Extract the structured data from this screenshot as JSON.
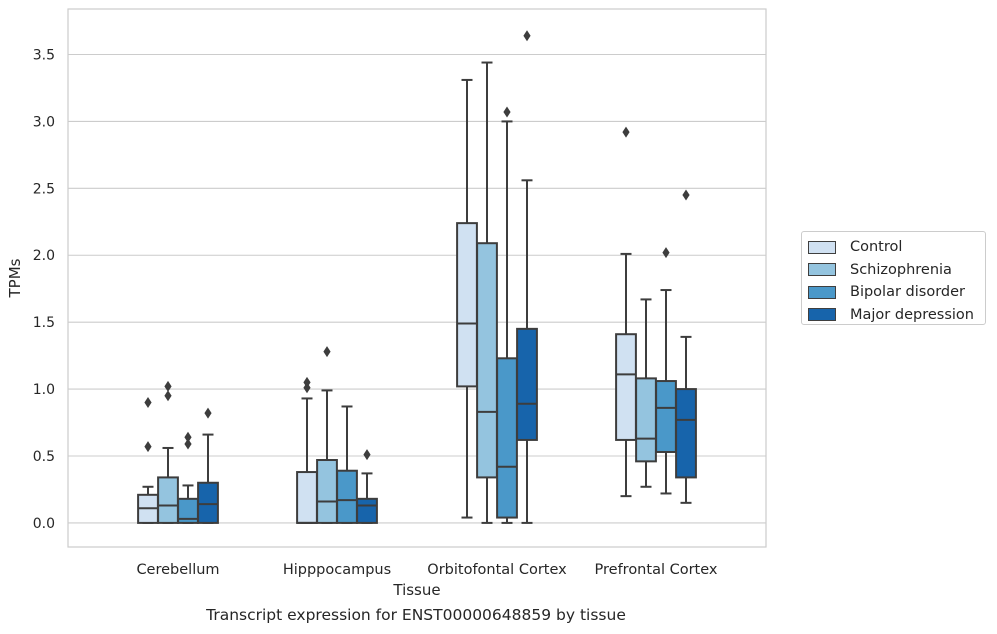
{
  "chart_data": {
    "type": "box",
    "title": "",
    "xlabel": "Tissue",
    "ylabel": "TPMs",
    "ylim": [
      -0.18,
      3.84
    ],
    "yticks": [
      "0.0",
      "0.5",
      "1.0",
      "1.5",
      "2.0",
      "2.5",
      "3.0",
      "3.5"
    ],
    "ytick_values": [
      0,
      0.5,
      1.0,
      1.5,
      2.0,
      2.5,
      3.0,
      3.5
    ],
    "grid": true,
    "legend_position": "right",
    "categories": [
      "Cerebellum",
      "Hipppocampus",
      "Orbitofontal Cortex",
      "Prefrontal Cortex"
    ],
    "series": [
      {
        "name": "Control",
        "color": "#d0e1f2",
        "boxes": [
          {
            "q1": 0.0,
            "median": 0.11,
            "q3": 0.21,
            "whisker_low": 0.0,
            "whisker_high": 0.27,
            "outliers": [
              0.57,
              0.9
            ]
          },
          {
            "q1": 0.0,
            "median": 0.0,
            "q3": 0.38,
            "whisker_low": 0.0,
            "whisker_high": 0.93,
            "outliers": [
              1.01,
              1.05
            ]
          },
          {
            "q1": 1.02,
            "median": 1.49,
            "q3": 2.24,
            "whisker_low": 0.04,
            "whisker_high": 3.31,
            "outliers": []
          },
          {
            "q1": 0.62,
            "median": 1.11,
            "q3": 1.41,
            "whisker_low": 0.2,
            "whisker_high": 2.01,
            "outliers": [
              2.92
            ]
          }
        ]
      },
      {
        "name": "Schizophrenia",
        "color": "#94c4df",
        "boxes": [
          {
            "q1": 0.0,
            "median": 0.13,
            "q3": 0.34,
            "whisker_low": 0.0,
            "whisker_high": 0.56,
            "outliers": [
              0.95,
              1.02
            ]
          },
          {
            "q1": 0.0,
            "median": 0.16,
            "q3": 0.47,
            "whisker_low": 0.0,
            "whisker_high": 0.99,
            "outliers": [
              1.28
            ]
          },
          {
            "q1": 0.34,
            "median": 0.83,
            "q3": 2.09,
            "whisker_low": 0.0,
            "whisker_high": 3.44,
            "outliers": []
          },
          {
            "q1": 0.46,
            "median": 0.63,
            "q3": 1.08,
            "whisker_low": 0.27,
            "whisker_high": 1.67,
            "outliers": []
          }
        ]
      },
      {
        "name": "Bipolar disorder",
        "color": "#4a98c9",
        "boxes": [
          {
            "q1": 0.0,
            "median": 0.03,
            "q3": 0.18,
            "whisker_low": 0.0,
            "whisker_high": 0.28,
            "outliers": [
              0.59,
              0.64
            ]
          },
          {
            "q1": 0.0,
            "median": 0.17,
            "q3": 0.39,
            "whisker_low": 0.0,
            "whisker_high": 0.87,
            "outliers": []
          },
          {
            "q1": 0.04,
            "median": 0.42,
            "q3": 1.23,
            "whisker_low": 0.0,
            "whisker_high": 3.0,
            "outliers": [
              3.07
            ]
          },
          {
            "q1": 0.53,
            "median": 0.86,
            "q3": 1.06,
            "whisker_low": 0.22,
            "whisker_high": 1.74,
            "outliers": [
              2.02
            ]
          }
        ]
      },
      {
        "name": "Major depression",
        "color": "#1764ab",
        "boxes": [
          {
            "q1": 0.0,
            "median": 0.14,
            "q3": 0.3,
            "whisker_low": 0.0,
            "whisker_high": 0.66,
            "outliers": [
              0.82
            ]
          },
          {
            "q1": 0.0,
            "median": 0.13,
            "q3": 0.18,
            "whisker_low": 0.0,
            "whisker_high": 0.37,
            "outliers": [
              0.51
            ]
          },
          {
            "q1": 0.62,
            "median": 0.89,
            "q3": 1.45,
            "whisker_low": 0.0,
            "whisker_high": 2.56,
            "outliers": [
              3.64
            ]
          },
          {
            "q1": 0.34,
            "median": 0.77,
            "q3": 1.0,
            "whisker_low": 0.15,
            "whisker_high": 1.39,
            "outliers": [
              2.45
            ]
          }
        ]
      }
    ],
    "caption": "Transcript expression for ENST00000648859 by tissue"
  }
}
